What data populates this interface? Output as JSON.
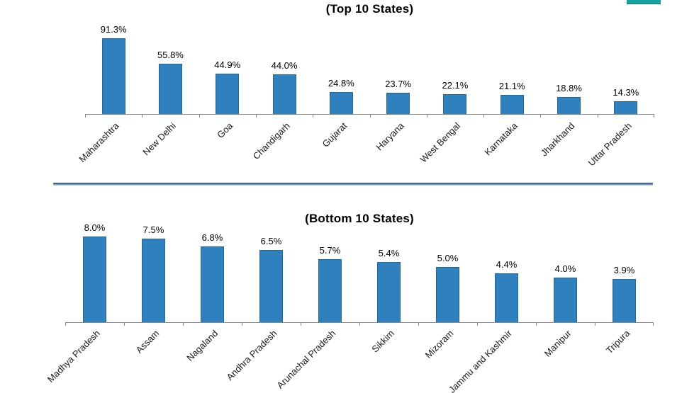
{
  "accent": {
    "color": "#17a2a2"
  },
  "divider": {
    "top_color": "#2a4a6b",
    "mid_color": "#6089b2",
    "bottom_color": "#c9d6e4"
  },
  "axis": {
    "line_color": "#8a8a8a"
  },
  "chart_data": [
    {
      "type": "bar",
      "title": "(Top 10 States)",
      "categories": [
        "Maharashtra",
        "New Delhi",
        "Goa",
        "Chandigarh",
        "Gujarat",
        "Haryana",
        "West Bengal",
        "Karnataka",
        "Jharkhand",
        "Uttar Pradesh"
      ],
      "values": [
        91.3,
        55.8,
        44.9,
        44.0,
        24.8,
        23.7,
        22.1,
        21.1,
        18.8,
        14.3
      ],
      "labels": [
        "91.3%",
        "55.8%",
        "44.9%",
        "44.0%",
        "24.8%",
        "23.7%",
        "22.1%",
        "21.1%",
        "18.8%",
        "14.3%"
      ],
      "xlabel": "",
      "ylabel": "",
      "ylim": [
        0,
        100
      ],
      "grid": false,
      "legend": "none",
      "bar_color": "#2e80be",
      "bar_border_color": "#24679a"
    },
    {
      "type": "bar",
      "title": "(Bottom 10 States)",
      "categories": [
        "Madhya Pradesh",
        "Assam",
        "Nagaland",
        "Andhra Pradesh",
        "Arunachal Pradesh",
        "Sikkim",
        "Mizoram",
        "Jammu and Kashmir",
        "Manipur",
        "Tripura"
      ],
      "values": [
        8.0,
        7.5,
        6.8,
        6.5,
        5.7,
        5.4,
        5.0,
        4.4,
        4.0,
        3.9
      ],
      "labels": [
        "8.0%",
        "7.5%",
        "6.8%",
        "6.5%",
        "5.7%",
        "5.4%",
        "5.0%",
        "4.4%",
        "4.0%",
        "3.9%"
      ],
      "xlabel": "",
      "ylabel": "",
      "ylim": [
        0,
        9
      ],
      "grid": false,
      "legend": "none",
      "bar_color": "#2e80be",
      "bar_border_color": "#24679a"
    }
  ]
}
